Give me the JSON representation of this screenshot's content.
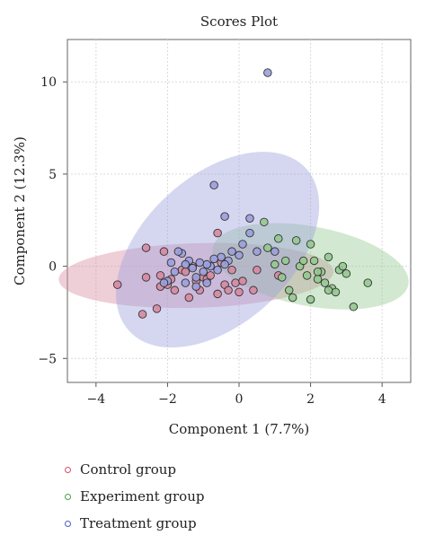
{
  "chart_data": {
    "type": "scatter",
    "title": "Scores Plot",
    "xlabel": "Component 1 (7.7%)",
    "ylabel": "Component 2 (12.3%)",
    "xlim": [
      -4.8,
      4.8
    ],
    "ylim": [
      -6.3,
      12.3
    ],
    "xticks": [
      -4,
      -2,
      0,
      2,
      4
    ],
    "yticks": [
      -5,
      0,
      5,
      10
    ],
    "grid": true,
    "legend_position": "below-left",
    "series": [
      {
        "name": "Control group",
        "color": "#d4506a",
        "fill": "#d68aa0",
        "ellipse": {
          "cx": -1.2,
          "cy": -0.5,
          "rx": 3.85,
          "ry": 1.75,
          "angle_deg": 4
        },
        "points": [
          [
            -3.4,
            -1.0
          ],
          [
            -2.6,
            1.0
          ],
          [
            -2.6,
            -0.6
          ],
          [
            -2.7,
            -2.6
          ],
          [
            -2.3,
            -2.3
          ],
          [
            -2.2,
            -0.5
          ],
          [
            -2.2,
            -1.1
          ],
          [
            -2.1,
            0.8
          ],
          [
            -2.0,
            -1.0
          ],
          [
            -1.9,
            -0.7
          ],
          [
            -1.8,
            -1.3
          ],
          [
            -1.6,
            -0.2
          ],
          [
            -1.5,
            -0.3
          ],
          [
            -1.4,
            -1.7
          ],
          [
            -1.3,
            0.0
          ],
          [
            -1.2,
            -0.8
          ],
          [
            -1.1,
            -1.3
          ],
          [
            -1.0,
            -0.6
          ],
          [
            -0.9,
            -0.7
          ],
          [
            -0.8,
            -0.5
          ],
          [
            -0.6,
            1.8
          ],
          [
            -0.5,
            0.2
          ],
          [
            -0.4,
            -1.0
          ],
          [
            -0.3,
            -1.3
          ],
          [
            -0.2,
            -0.2
          ],
          [
            -0.1,
            -0.9
          ],
          [
            0.0,
            -1.4
          ],
          [
            0.1,
            -0.8
          ],
          [
            0.4,
            -1.3
          ],
          [
            0.5,
            -0.2
          ],
          [
            1.1,
            -0.5
          ],
          [
            -0.6,
            -1.5
          ]
        ]
      },
      {
        "name": "Experiment group",
        "color": "#4a9e4a",
        "fill": "#93c98f",
        "ellipse": {
          "cx": 2.0,
          "cy": 0.0,
          "rx": 3.0,
          "ry": 2.0,
          "angle_deg": -33
        },
        "points": [
          [
            0.7,
            2.4
          ],
          [
            0.8,
            1.0
          ],
          [
            1.0,
            0.1
          ],
          [
            1.1,
            1.5
          ],
          [
            1.2,
            -0.6
          ],
          [
            1.3,
            0.3
          ],
          [
            1.4,
            -1.3
          ],
          [
            1.5,
            -1.7
          ],
          [
            1.6,
            1.4
          ],
          [
            1.7,
            0.0
          ],
          [
            1.8,
            0.3
          ],
          [
            1.9,
            -0.5
          ],
          [
            2.0,
            -1.8
          ],
          [
            2.0,
            1.2
          ],
          [
            2.1,
            0.3
          ],
          [
            2.2,
            -0.7
          ],
          [
            2.3,
            -0.3
          ],
          [
            2.4,
            -0.9
          ],
          [
            2.5,
            0.5
          ],
          [
            2.6,
            -1.2
          ],
          [
            2.7,
            -1.4
          ],
          [
            2.8,
            -0.2
          ],
          [
            2.9,
            0.0
          ],
          [
            3.0,
            -0.4
          ],
          [
            3.2,
            -2.2
          ],
          [
            3.6,
            -0.9
          ],
          [
            2.2,
            -0.3
          ],
          [
            2.5,
            -1.3
          ]
        ]
      },
      {
        "name": "Treatment group",
        "color": "#4a5cc4",
        "fill": "#9aa0dc",
        "ellipse": {
          "cx": -0.6,
          "cy": 0.9,
          "rx": 5.5,
          "ry": 2.45,
          "angle_deg": 73
        },
        "points": [
          [
            0.8,
            10.5
          ],
          [
            -0.7,
            4.4
          ],
          [
            -0.4,
            2.7
          ],
          [
            0.3,
            2.6
          ],
          [
            0.3,
            1.8
          ],
          [
            0.1,
            1.2
          ],
          [
            0.0,
            0.6
          ],
          [
            -0.2,
            0.8
          ],
          [
            -0.3,
            0.3
          ],
          [
            -0.4,
            0.1
          ],
          [
            -0.5,
            0.5
          ],
          [
            -0.6,
            -0.2
          ],
          [
            -0.7,
            0.4
          ],
          [
            -0.8,
            0.0
          ],
          [
            -0.9,
            0.1
          ],
          [
            -1.0,
            -0.3
          ],
          [
            -1.1,
            0.2
          ],
          [
            -1.2,
            -0.6
          ],
          [
            -1.3,
            -0.1
          ],
          [
            -1.4,
            0.3
          ],
          [
            -1.5,
            -0.9
          ],
          [
            -1.6,
            0.7
          ],
          [
            -1.7,
            0.8
          ],
          [
            -1.8,
            -0.3
          ],
          [
            -1.9,
            0.2
          ],
          [
            -2.0,
            -0.8
          ],
          [
            -1.2,
            -1.1
          ],
          [
            -1.5,
            0.1
          ],
          [
            0.5,
            0.8
          ],
          [
            1.0,
            0.8
          ],
          [
            -0.9,
            -0.9
          ],
          [
            -2.1,
            -0.9
          ]
        ]
      }
    ]
  }
}
